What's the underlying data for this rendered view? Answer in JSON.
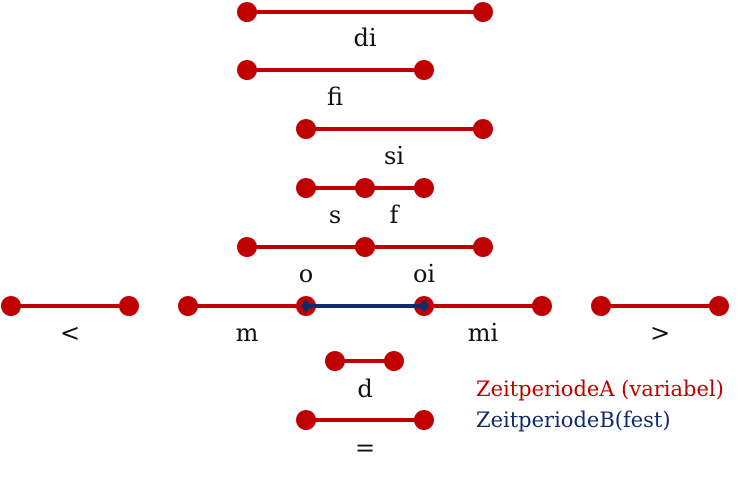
{
  "colors": {
    "variable": "#c00000",
    "fixed": "#102a6e",
    "label": "#111111"
  },
  "relations": [
    {
      "id": "di",
      "label": "di"
    },
    {
      "id": "fi",
      "label": "fi"
    },
    {
      "id": "si",
      "label": "si"
    },
    {
      "id": "s",
      "label": "s"
    },
    {
      "id": "f",
      "label": "f"
    },
    {
      "id": "o",
      "label": "o"
    },
    {
      "id": "oi",
      "label": "oi"
    },
    {
      "id": "lt",
      "label": "<"
    },
    {
      "id": "m",
      "label": "m"
    },
    {
      "id": "mi",
      "label": "mi"
    },
    {
      "id": "gt",
      "label": ">"
    },
    {
      "id": "d",
      "label": "d"
    },
    {
      "id": "eq",
      "label": "="
    }
  ],
  "legend": {
    "variable_label": "ZeitperiodeA (variabel)",
    "fixed_label": "ZeitperiodeB(fest)"
  }
}
